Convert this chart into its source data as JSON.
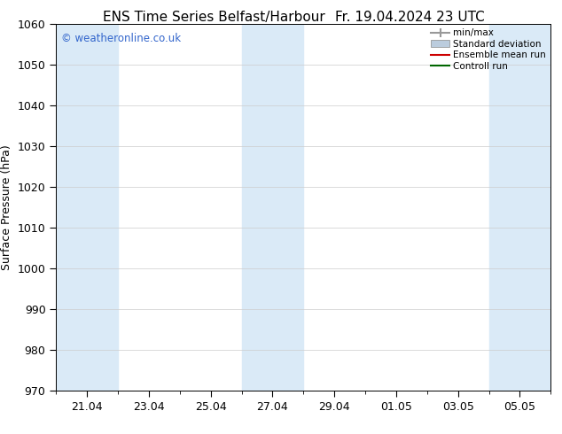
{
  "title_left": "ENS Time Series Belfast/Harbour",
  "title_right": "Fr. 19.04.2024 23 UTC",
  "ylabel": "Surface Pressure (hPa)",
  "ylim": [
    970,
    1060
  ],
  "yticks": [
    970,
    980,
    990,
    1000,
    1010,
    1020,
    1030,
    1040,
    1050,
    1060
  ],
  "bg_color": "#ffffff",
  "plot_bg_color": "#ffffff",
  "shaded_band_color": "#daeaf7",
  "watermark_text": "© weatheronline.co.uk",
  "watermark_color": "#3366cc",
  "legend_items": [
    {
      "label": "min/max",
      "color": "#999999",
      "style": "minmax"
    },
    {
      "label": "Standard deviation",
      "color": "#bbccdd",
      "style": "fill"
    },
    {
      "label": "Ensemble mean run",
      "color": "#cc0000",
      "style": "line"
    },
    {
      "label": "Controll run",
      "color": "#006600",
      "style": "line"
    }
  ],
  "x_tick_labels": [
    "21.04",
    "23.04",
    "25.04",
    "27.04",
    "29.04",
    "01.05",
    "03.05",
    "05.05"
  ],
  "x_tick_positions": [
    2,
    6,
    10,
    14,
    18,
    22,
    26,
    30
  ],
  "x_lim": [
    0,
    32
  ],
  "shaded_columns": [
    {
      "start": 0,
      "end": 4
    },
    {
      "start": 12,
      "end": 16
    },
    {
      "start": 28,
      "end": 32
    }
  ],
  "minor_x_step": 2,
  "grid_color": "#cccccc",
  "tick_color": "#000000",
  "font_size": 9,
  "title_font_size": 11
}
